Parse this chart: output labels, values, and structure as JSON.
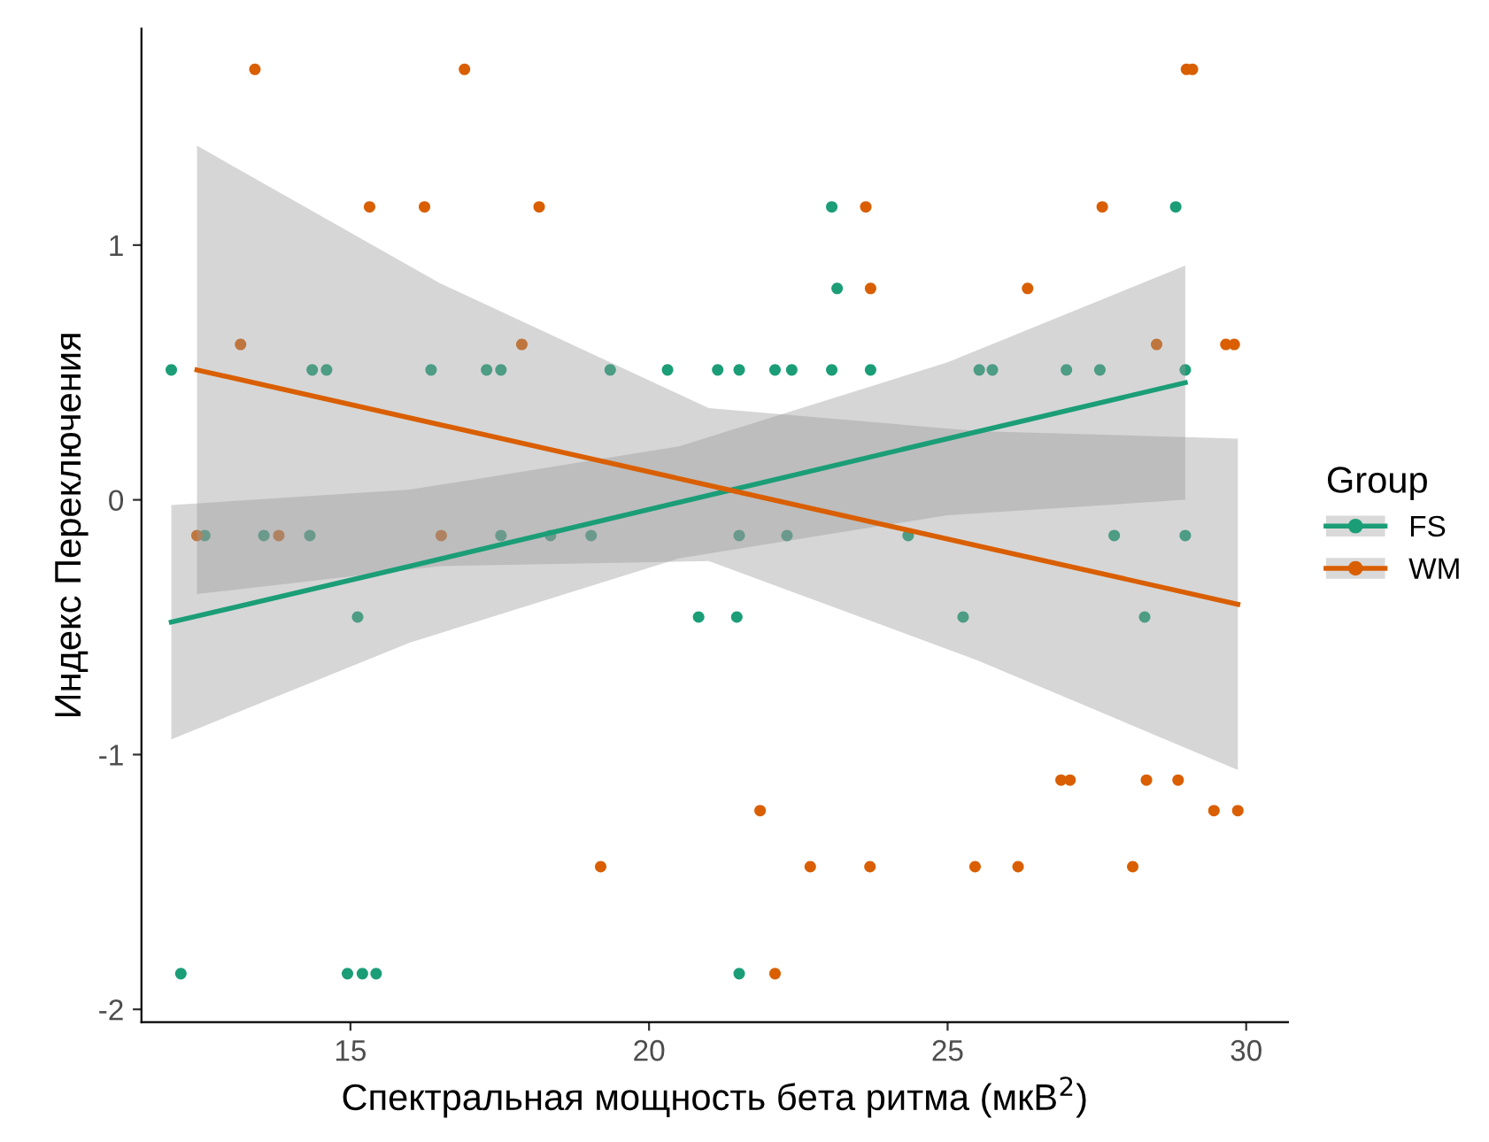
{
  "chart_data": {
    "type": "scatter",
    "xlabel": "Спектральная мощность бета ритма (мкВ$^{2}$)",
    "ylabel": "Индекс Переключения",
    "legend_title": "Group",
    "legend": "right",
    "grid": false,
    "marker": "circle",
    "xlim": [
      11.5,
      30.7
    ],
    "xticks": [
      15,
      20,
      25,
      30
    ],
    "ylim": [
      -2.05,
      1.85
    ],
    "yticks": [
      -2,
      -1,
      0,
      1
    ],
    "series": [
      {
        "name": "FS",
        "color": "#1b9e77",
        "x": [
          28.82,
          23.06,
          23.15,
          12.0,
          14.36,
          14.6,
          16.35,
          17.28,
          17.52,
          19.35,
          20.31,
          21.15,
          21.51,
          22.11,
          22.39,
          23.06,
          23.71,
          25.53,
          25.75,
          26.99,
          27.55,
          28.98,
          12.56,
          13.55,
          14.32,
          17.52,
          18.35,
          19.03,
          21.51,
          22.31,
          24.34,
          27.79,
          28.98,
          15.12,
          20.83,
          21.47,
          25.26,
          28.3,
          12.16,
          14.95,
          15.2,
          15.43,
          21.51
        ],
        "values": [
          1.15,
          1.15,
          0.83,
          0.51,
          0.51,
          0.51,
          0.51,
          0.51,
          0.51,
          0.51,
          0.51,
          0.51,
          0.51,
          0.51,
          0.51,
          0.51,
          0.51,
          0.51,
          0.51,
          0.51,
          0.51,
          0.51,
          -0.14,
          -0.14,
          -0.14,
          -0.14,
          -0.14,
          -0.14,
          -0.14,
          -0.14,
          -0.14,
          -0.14,
          -0.14,
          -0.46,
          -0.46,
          -0.46,
          -0.46,
          -0.46,
          -1.86,
          -1.86,
          -1.86,
          -1.86,
          -1.86
        ]
      },
      {
        "name": "WM",
        "color": "#d95f02",
        "x": [
          13.4,
          16.91,
          29.0,
          29.1,
          15.32,
          16.24,
          18.16,
          23.63,
          27.59,
          23.71,
          26.34,
          13.16,
          17.87,
          28.5,
          29.66,
          29.8,
          12.43,
          13.8,
          16.52,
          26.9,
          27.05,
          28.33,
          28.86,
          21.86,
          29.46,
          29.86,
          19.19,
          22.7,
          23.7,
          25.46,
          26.18,
          28.1,
          22.11
        ],
        "values": [
          1.69,
          1.69,
          1.69,
          1.69,
          1.15,
          1.15,
          1.15,
          1.15,
          1.15,
          0.83,
          0.83,
          0.61,
          0.61,
          0.61,
          0.61,
          0.61,
          -0.14,
          -0.14,
          -0.14,
          -1.1,
          -1.1,
          -1.1,
          -1.1,
          -1.22,
          -1.22,
          -1.22,
          -1.44,
          -1.44,
          -1.44,
          -1.44,
          -1.44,
          -1.44,
          -1.86
        ]
      },
      {
        "type": "line",
        "marker": "none",
        "color": "#1b9e77",
        "x": [
          12.0,
          16.0,
          20.5,
          25.0,
          28.98
        ],
        "values": [
          -0.48,
          -0.26,
          -0.01,
          0.24,
          0.46
        ],
        "lower": [
          -0.94,
          -0.56,
          -0.23,
          -0.06,
          0.0
        ],
        "upper": [
          -0.02,
          0.04,
          0.21,
          0.54,
          0.92
        ]
      },
      {
        "type": "line",
        "marker": "none",
        "color": "#d95f02",
        "x": [
          12.43,
          16.5,
          21.0,
          25.5,
          29.86
        ],
        "values": [
          0.51,
          0.295,
          0.057,
          -0.18,
          -0.41
        ],
        "lower": [
          -0.37,
          -0.26,
          -0.24,
          -0.63,
          -1.06
        ],
        "upper": [
          1.39,
          0.85,
          0.36,
          0.27,
          0.24
        ]
      }
    ]
  }
}
